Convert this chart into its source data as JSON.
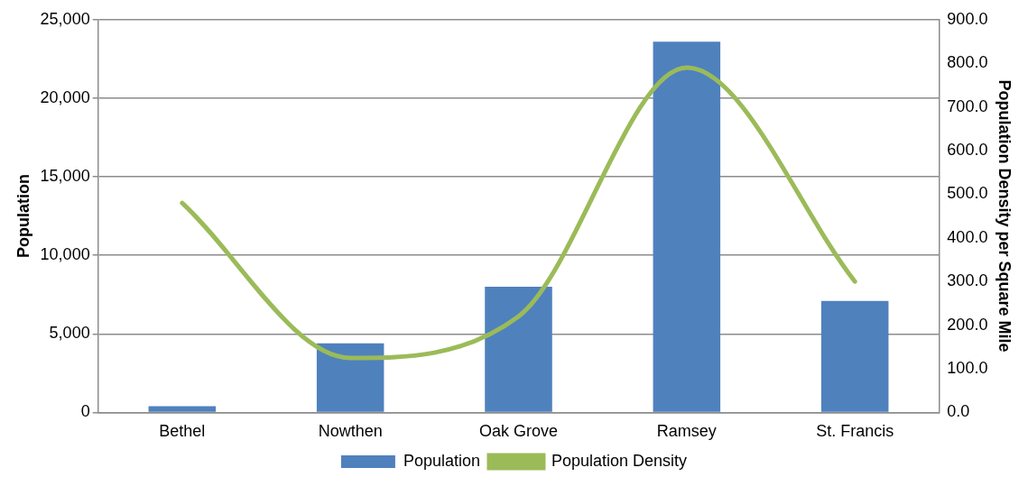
{
  "chart_data": {
    "type": "bar",
    "ylabel": "Population",
    "y2label": "Population Density per Square Mile",
    "categories": [
      "Bethel",
      "Nowthen",
      "Oak Grove",
      "Ramsey",
      "St. Francis"
    ],
    "series": [
      {
        "name": "Population",
        "color": "#4f81bd",
        "values": [
          400,
          4400,
          8000,
          23600,
          7100
        ]
      },
      {
        "name": "Population Density",
        "type": "line",
        "axis": "y2",
        "color": "#9bbb59",
        "values": [
          480,
          125,
          220,
          790,
          300
        ]
      }
    ],
    "ylim": [
      0,
      25000
    ],
    "yticks": [
      {
        "value": 0,
        "label": "0"
      },
      {
        "value": 5000,
        "label": "5,000"
      },
      {
        "value": 10000,
        "label": "10,000"
      },
      {
        "value": 15000,
        "label": "15,000"
      },
      {
        "value": 20000,
        "label": "20,000"
      },
      {
        "value": 25000,
        "label": "25,000"
      }
    ],
    "y2lim": [
      0,
      900
    ],
    "y2ticks": [
      {
        "value": 0,
        "label": "0.0"
      },
      {
        "value": 100,
        "label": "100.0"
      },
      {
        "value": 200,
        "label": "200.0"
      },
      {
        "value": 300,
        "label": "300.0"
      },
      {
        "value": 400,
        "label": "400.0"
      },
      {
        "value": 500,
        "label": "500.0"
      },
      {
        "value": 600,
        "label": "600.0"
      },
      {
        "value": 700,
        "label": "700.0"
      },
      {
        "value": 800,
        "label": "800.0"
      },
      {
        "value": 900,
        "label": "900.0"
      }
    ],
    "grid": "y",
    "legend": "bottom",
    "marker": "none",
    "line_style": "solid"
  }
}
